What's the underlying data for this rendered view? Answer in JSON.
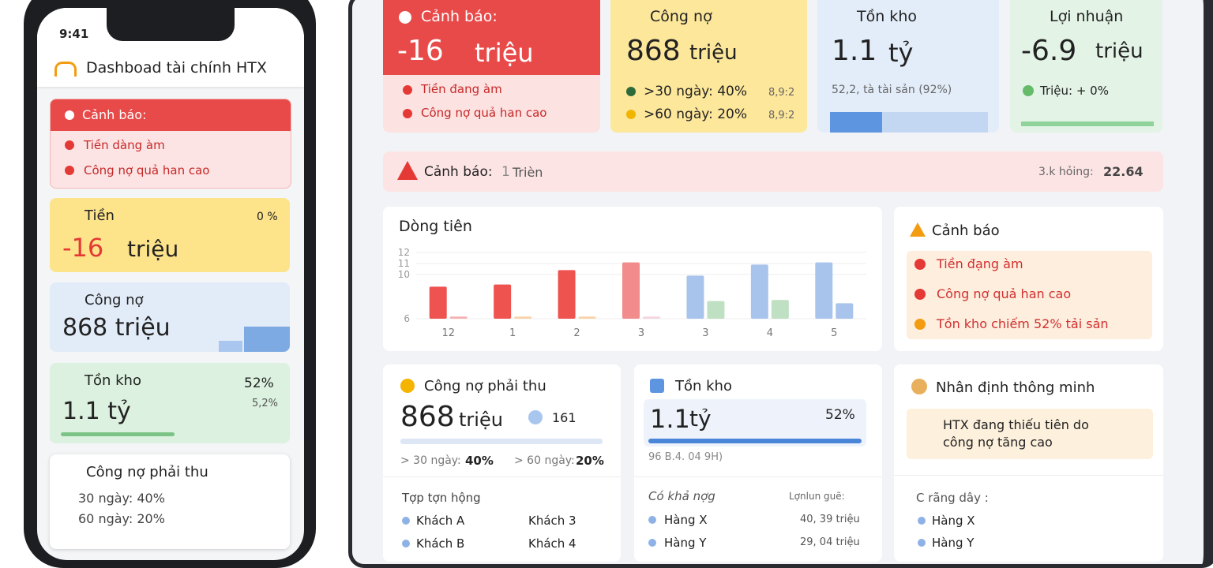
{
  "phone": {
    "time": "9:41",
    "title": "Dashboad tài chính HTX",
    "alert": {
      "title": "Cảnh báo:",
      "items": [
        "Tiền dàng àm",
        "Công nợ quả han cao"
      ]
    },
    "cash": {
      "label": "Tiền",
      "value": "-16",
      "unit": "triệu",
      "change": "0 %"
    },
    "debt": {
      "label": "Công nợ",
      "value": "868 triệu"
    },
    "stock": {
      "label": "Tồn kho",
      "value": "1.1 tỷ",
      "pct": "52%",
      "sub": "5,2%"
    },
    "receivable": {
      "title": "Công nợ phải thu",
      "rows": [
        "30 ngày: 40%",
        "60 ngày: 20%"
      ]
    }
  },
  "kpis": [
    {
      "label": "Cảnh báo:",
      "value": "-16",
      "unit": "triệu",
      "items": [
        "Tiền đang àm",
        "Công nợ quả han cao"
      ]
    },
    {
      "label": "Công nợ",
      "value": "868",
      "unit": "triệu",
      "rows": [
        {
          "text": ">30 ngày: 40%",
          "side": "8,9:2"
        },
        {
          "text": ">60 ngày: 20%",
          "side": "8,9:2"
        }
      ]
    },
    {
      "label": "Tồn kho",
      "value": "1.1",
      "unit": "tỷ",
      "note": "52,2, tà tài sản (92%)"
    },
    {
      "label": "Lợi nhuận",
      "value": "-6.9",
      "unit": "triệu",
      "note": "Triệu: + 0%"
    }
  ],
  "banner": {
    "label": "Cảnh báo:",
    "count": "1",
    "text": "Trièn",
    "right_label": "3.k hỏing:",
    "right_value": "22.64"
  },
  "cashflow": {
    "type": "bar",
    "title": "Dòng tiên",
    "categories": [
      "12",
      "1",
      "2",
      "3",
      "3",
      "4",
      "5"
    ],
    "ylim": [
      6,
      12
    ],
    "yticks": [
      12,
      11,
      10,
      6
    ],
    "series": [
      {
        "values": [
          8.9,
          9.1,
          10.4,
          11.1,
          9.9,
          10.9,
          11.1
        ],
        "colors": [
          "#ef5350",
          "#ef5350",
          "#ef5350",
          "#f28b8b",
          "#a9c4ec",
          "#a9c4ec",
          "#a9c4ec"
        ]
      },
      {
        "values": [
          6.2,
          6.2,
          6.2,
          6.2,
          7.6,
          7.7,
          7.4
        ],
        "colors": [
          "#f6b1b1",
          "#f9d3a8",
          "#f9d3a8",
          "#f3d6dd",
          "#bfe0c3",
          "#bfe0c3",
          "#a9c4ec"
        ]
      }
    ]
  },
  "alerts": {
    "title": "Cảnh báo",
    "items": [
      "Tiền đạng àm",
      "Công nợ quả han cao",
      "Tồn kho chiếm 52% tải sản"
    ]
  },
  "receivable": {
    "title": "Công nợ phải thu",
    "value": "868",
    "unit": "triệu",
    "badge": "161",
    "buckets": [
      {
        "label": "> 30 ngày:",
        "value": "40%"
      },
      {
        "label": "> 60 ngày:",
        "value": "20%"
      }
    ],
    "top_title": "Tợp tợn hộng",
    "customers": [
      "Khách A",
      "Khách 3",
      "Khách B",
      "Khách 4"
    ]
  },
  "inventory": {
    "title": "Tồn kho",
    "value": "1.1",
    "unit": "tỷ",
    "pct": "52%",
    "footnote": "96 B.4. 04 9H)",
    "section": "Có khả nợg",
    "side": "Lợnlun guẽ:",
    "items": [
      {
        "name": "Hàng X",
        "value": "40, 39 triệu"
      },
      {
        "name": "Hàng Y",
        "value": "29, 04 triệu"
      }
    ]
  },
  "insight": {
    "title": "Nhân định thông minh",
    "message": "HTX đang thiếu tiên do công nợ tăng cao",
    "section": "C rãng dây :",
    "items": [
      "Hàng X",
      "Hàng Y"
    ]
  }
}
